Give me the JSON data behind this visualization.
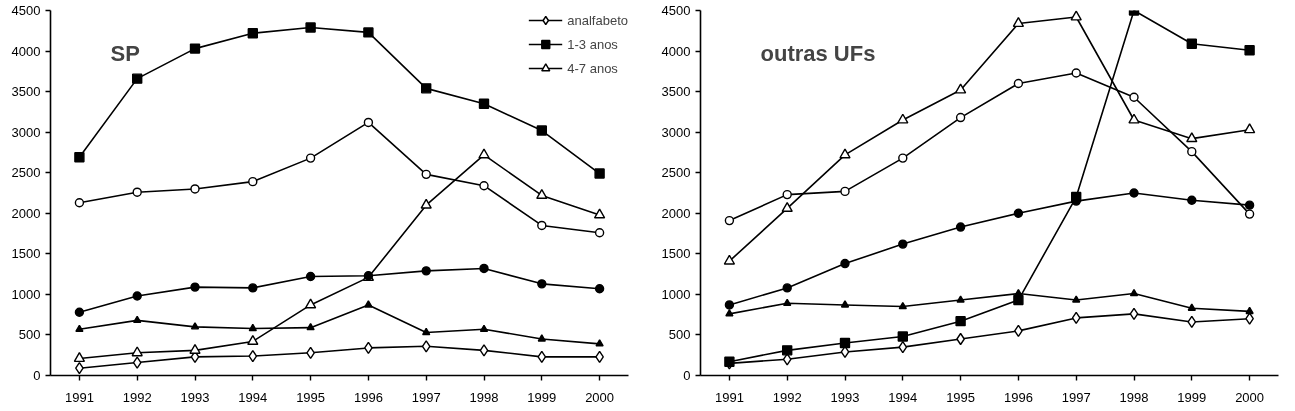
{
  "chart_data": [
    {
      "type": "line",
      "title": "SP",
      "categories": [
        "1991",
        "1992",
        "1993",
        "1994",
        "1995",
        "1996",
        "1997",
        "1998",
        "1999",
        "2000"
      ],
      "ylim": [
        0,
        4500
      ],
      "yticks": [
        0,
        500,
        1000,
        1500,
        2000,
        2500,
        3000,
        3500,
        4000,
        4500
      ],
      "grid": false,
      "legend": "top right",
      "series": [
        {
          "name": "analfabeto",
          "color": "#000000",
          "marker": "diamond",
          "values": [
            90,
            160,
            230,
            240,
            280,
            340,
            360,
            310,
            230,
            230
          ]
        },
        {
          "name": "1-3 anos",
          "color": "#000000",
          "marker": "square",
          "values": [
            2690,
            3660,
            4030,
            4220,
            4290,
            4230,
            3540,
            3350,
            3020,
            2490
          ]
        },
        {
          "name": "4-7 anos",
          "color": "#000000",
          "marker": "triangle",
          "values": [
            210,
            280,
            310,
            420,
            870,
            1210,
            2100,
            2720,
            2220,
            1980
          ]
        },
        {
          "color": "#000000",
          "marker": "circle",
          "values": [
            2130,
            2260,
            2300,
            2390,
            2680,
            3120,
            2480,
            2340,
            1850,
            1760
          ]
        },
        {
          "color": "#000000",
          "marker": "circle",
          "values": [
            780,
            980,
            1090,
            1080,
            1220,
            1230,
            1290,
            1320,
            1130,
            1070
          ]
        },
        {
          "color": "#000000",
          "marker": "triangle",
          "values": [
            570,
            680,
            600,
            580,
            590,
            870,
            530,
            570,
            450,
            390
          ]
        }
      ]
    },
    {
      "type": "line",
      "title": "outras UFs",
      "categories": [
        "1991",
        "1992",
        "1993",
        "1994",
        "1995",
        "1996",
        "1997",
        "1998",
        "1999",
        "2000"
      ],
      "ylim": [
        0,
        4500
      ],
      "yticks": [
        0,
        500,
        1000,
        1500,
        2000,
        2500,
        3000,
        3500,
        4000,
        4500
      ],
      "grid": false,
      "series": [
        {
          "color": "#000000",
          "marker": "diamond",
          "values": [
            150,
            200,
            290,
            350,
            450,
            550,
            710,
            760,
            660,
            700
          ]
        },
        {
          "color": "#000000",
          "marker": "square",
          "values": [
            170,
            310,
            400,
            480,
            670,
            930,
            2200,
            4500,
            4090,
            4010
          ]
        },
        {
          "color": "#000000",
          "marker": "triangle",
          "values": [
            1410,
            2060,
            2720,
            3150,
            3520,
            4340,
            4420,
            3150,
            2920,
            3030
          ]
        },
        {
          "color": "#000000",
          "marker": "circle",
          "values": [
            1910,
            2230,
            2270,
            2680,
            3180,
            3600,
            3730,
            3430,
            2760,
            1990
          ]
        },
        {
          "color": "#000000",
          "marker": "circle",
          "values": [
            870,
            1080,
            1380,
            1620,
            1830,
            2000,
            2150,
            2250,
            2160,
            2100
          ]
        },
        {
          "color": "#000000",
          "marker": "triangle",
          "values": [
            760,
            890,
            870,
            850,
            930,
            1010,
            930,
            1010,
            830,
            790
          ]
        }
      ]
    }
  ]
}
